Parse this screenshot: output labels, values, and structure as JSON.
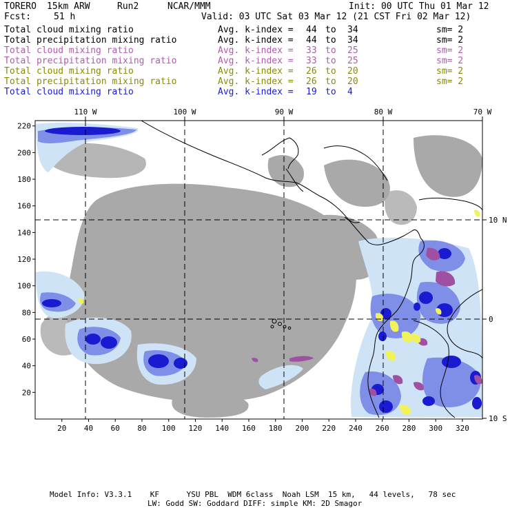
{
  "header": {
    "model": "TORERO",
    "resolution": "15km ARW",
    "run": "Run2",
    "org": "NCAR/MMM",
    "init": "Init: 00 UTC Thu 01 Mar 12",
    "fcst_label": "Fcst:",
    "fcst_value": "51 h",
    "valid": "Valid: 03 UTC Sat 03 Mar 12 (21 CST Fri 02 Mar 12)"
  },
  "legend_rows": [
    {
      "field": "Total cloud mixing ratio",
      "kindex": "Avg. k-index =",
      "from": "44",
      "to": "to",
      "until": "34",
      "sm": "sm= 2",
      "color": "#000000"
    },
    {
      "field": "Total precipitation mixing ratio",
      "kindex": "Avg. k-index =",
      "from": "44",
      "to": "to",
      "until": "34",
      "sm": "sm= 2",
      "color": "#000000"
    },
    {
      "field": "Total cloud mixing ratio",
      "kindex": "Avg. k-index =",
      "from": "33",
      "to": "to",
      "until": "25",
      "sm": "sm= 2",
      "color": "#b05ab0"
    },
    {
      "field": "Total precipitation mixing ratio",
      "kindex": "Avg. k-index =",
      "from": "33",
      "to": "to",
      "until": "25",
      "sm": "sm= 2",
      "color": "#b05ab0"
    },
    {
      "field": "Total cloud mixing ratio",
      "kindex": "Avg. k-index =",
      "from": "26",
      "to": "to",
      "until": "20",
      "sm": "sm= 2",
      "color": "#8a8a00"
    },
    {
      "field": "Total precipitation mixing ratio",
      "kindex": "Avg. k-index =",
      "from": "26",
      "to": "to",
      "until": "20",
      "sm": "sm= 2",
      "color": "#8a8a00"
    },
    {
      "field": "Total cloud mixing ratio",
      "kindex": "Avg. k-index =",
      "from": "19",
      "to": "to",
      "until": "4",
      "sm": "",
      "color": "#1a1ad0"
    }
  ],
  "map": {
    "top_lon_labels": [
      "110 W",
      "100 W",
      "90 W",
      "80 W",
      "70 W"
    ],
    "right_lat_labels": [
      "10 N",
      "0",
      "10 S"
    ],
    "x_ticks": [
      "20",
      "40",
      "60",
      "80",
      "100",
      "120",
      "140",
      "160",
      "180",
      "200",
      "220",
      "240",
      "260",
      "280",
      "300",
      "320"
    ],
    "y_ticks": [
      "20",
      "40",
      "60",
      "80",
      "100",
      "120",
      "140",
      "160",
      "180",
      "200",
      "220"
    ],
    "colors": {
      "gray": "#a9a9a9",
      "light_blue": "#cfe3f7",
      "mid_blue": "#7f8fe8",
      "dark_blue": "#1a1ad0",
      "purple": "#a050a0",
      "yellow": "#f2f25a"
    }
  },
  "footer": {
    "line1": "Model Info: V3.3.1    KF      YSU PBL  WDM 6class  Noah LSM  15 km,   44 levels,   78 sec",
    "line2": "LW: Godd SW: Goddard DIFF: simple KM: 2D Smagor"
  }
}
